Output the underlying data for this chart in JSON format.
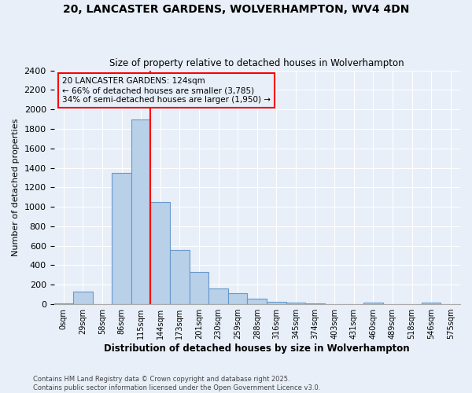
{
  "title_line1": "20, LANCASTER GARDENS, WOLVERHAMPTON, WV4 4DN",
  "title_line2": "Size of property relative to detached houses in Wolverhampton",
  "xlabel": "Distribution of detached houses by size in Wolverhampton",
  "ylabel": "Number of detached properties",
  "annotation_text": "20 LANCASTER GARDENS: 124sqm\n← 66% of detached houses are smaller (3,785)\n34% of semi-detached houses are larger (1,950) →",
  "footer_line1": "Contains HM Land Registry data © Crown copyright and database right 2025.",
  "footer_line2": "Contains public sector information licensed under the Open Government Licence v3.0.",
  "bar_labels": [
    "0sqm",
    "29sqm",
    "58sqm",
    "86sqm",
    "115sqm",
    "144sqm",
    "173sqm",
    "201sqm",
    "230sqm",
    "259sqm",
    "288sqm",
    "316sqm",
    "345sqm",
    "374sqm",
    "403sqm",
    "431sqm",
    "460sqm",
    "489sqm",
    "518sqm",
    "546sqm",
    "575sqm"
  ],
  "bar_values": [
    10,
    130,
    0,
    1350,
    1900,
    1050,
    560,
    330,
    165,
    110,
    60,
    25,
    15,
    10,
    0,
    0,
    15,
    0,
    0,
    15,
    0
  ],
  "bar_color": "#b8d0e8",
  "bar_edge_color": "#6699cc",
  "background_color": "#e8eff8",
  "grid_color": "#ffffff",
  "red_line_x": 5.0,
  "ylim": [
    0,
    2400
  ],
  "yticks": [
    0,
    200,
    400,
    600,
    800,
    1000,
    1200,
    1400,
    1600,
    1800,
    2000,
    2200,
    2400
  ]
}
